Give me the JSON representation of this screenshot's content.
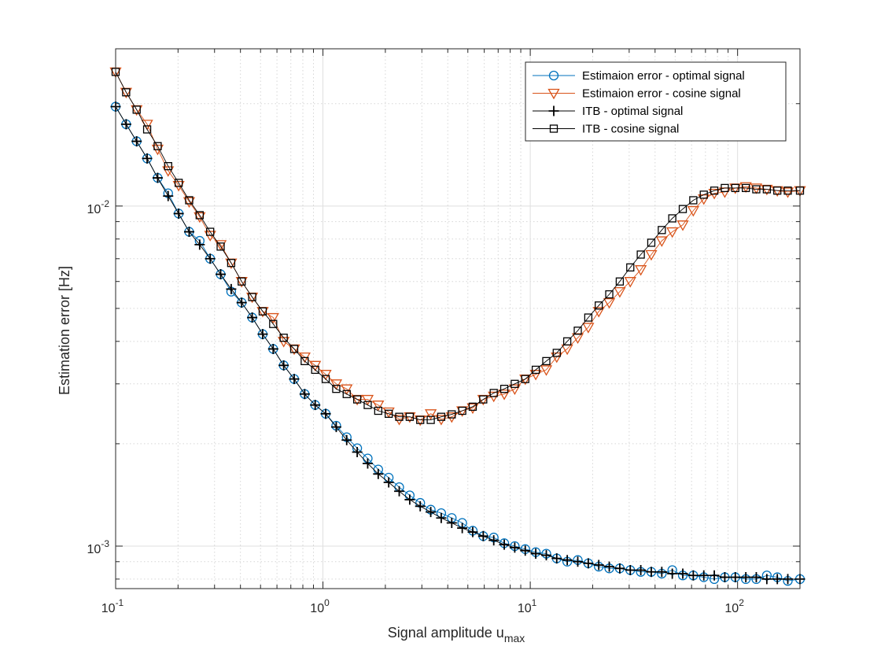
{
  "chart_data": {
    "type": "line",
    "x_scale": "log",
    "y_scale": "log",
    "xlim": [
      0.1,
      200
    ],
    "ylim": [
      0.00075,
      0.029
    ],
    "xlabel": "Signal amplitude u",
    "xlabel_sub": "max",
    "ylabel": "Estimation error [Hz]",
    "grid": true,
    "legend_position": "top-right",
    "x_ticks": [
      {
        "value": 0.1,
        "base": "10",
        "exp": "-1"
      },
      {
        "value": 1,
        "base": "10",
        "exp": "0"
      },
      {
        "value": 10,
        "base": "10",
        "exp": "1"
      },
      {
        "value": 100,
        "base": "10",
        "exp": "2"
      }
    ],
    "y_ticks": [
      {
        "value": 0.001,
        "base": "10",
        "exp": "-3"
      },
      {
        "value": 0.01,
        "base": "10",
        "exp": "-2"
      }
    ],
    "x": [
      0.1,
      0.1124,
      0.1263,
      0.1419,
      0.1595,
      0.1792,
      0.2014,
      0.2263,
      0.2543,
      0.2858,
      0.3211,
      0.3609,
      0.4055,
      0.4557,
      0.5121,
      0.5754,
      0.6466,
      0.7266,
      0.8165,
      0.9175,
      1.031,
      1.159,
      1.302,
      1.463,
      1.644,
      1.848,
      2.076,
      2.333,
      2.622,
      2.946,
      3.311,
      3.72,
      4.181,
      4.698,
      5.279,
      5.932,
      6.666,
      7.491,
      8.418,
      9.459,
      10.63,
      11.95,
      13.42,
      15.08,
      16.95,
      19.05,
      21.4,
      24.05,
      27.03,
      30.37,
      34.13,
      38.35,
      43.1,
      48.43,
      54.42,
      61.15,
      68.72,
      77.22,
      86.78,
      97.51,
      109.6,
      123.1,
      138.4,
      155.5,
      174.7,
      200
    ],
    "series": [
      {
        "name": "Estimaion error - optimal signal",
        "marker": "circle",
        "color": "#0072BD",
        "values": [
          0.0196,
          0.0174,
          0.0155,
          0.0138,
          0.0121,
          0.0109,
          0.0095,
          0.0084,
          0.0079,
          0.007,
          0.0063,
          0.0056,
          0.0052,
          0.0047,
          0.0042,
          0.0038,
          0.0034,
          0.0031,
          0.0028,
          0.0026,
          0.00245,
          0.00226,
          0.00209,
          0.00194,
          0.00181,
          0.00168,
          0.00159,
          0.00149,
          0.00141,
          0.00134,
          0.00128,
          0.00125,
          0.00121,
          0.00117,
          0.00111,
          0.00107,
          0.00106,
          0.00102,
          0.001,
          0.00098,
          0.00096,
          0.00095,
          0.00092,
          0.0009,
          0.00091,
          0.00089,
          0.00087,
          0.00086,
          0.00086,
          0.00085,
          0.00084,
          0.00084,
          0.00083,
          0.00085,
          0.00082,
          0.00082,
          0.00081,
          0.0008,
          0.00081,
          0.00081,
          0.0008,
          0.0008,
          0.00082,
          0.00081,
          0.00079,
          0.0008
        ]
      },
      {
        "name": "Estimaion error - cosine signal",
        "marker": "triangle-down",
        "color": "#D95319",
        "values": [
          0.0248,
          0.0216,
          0.0192,
          0.0174,
          0.0147,
          0.0127,
          0.0115,
          0.0103,
          0.0093,
          0.0082,
          0.0077,
          0.0068,
          0.006,
          0.0054,
          0.0049,
          0.0047,
          0.004,
          0.0038,
          0.0036,
          0.0034,
          0.0032,
          0.003,
          0.0029,
          0.0027,
          0.0027,
          0.0026,
          0.00248,
          0.00236,
          0.0024,
          0.00235,
          0.00245,
          0.00236,
          0.0024,
          0.0025,
          0.00255,
          0.0027,
          0.00276,
          0.0028,
          0.0029,
          0.0031,
          0.0032,
          0.0033,
          0.0036,
          0.0038,
          0.0041,
          0.0044,
          0.0049,
          0.0052,
          0.0056,
          0.006,
          0.0065,
          0.0072,
          0.0079,
          0.0084,
          0.0088,
          0.0097,
          0.0105,
          0.0109,
          0.011,
          0.0113,
          0.0114,
          0.0113,
          0.0112,
          0.0111,
          0.011,
          0.0111
        ]
      },
      {
        "name": "ITB - optimal signal",
        "marker": "plus",
        "color": "#000000",
        "values": [
          0.0196,
          0.0174,
          0.0155,
          0.0138,
          0.0121,
          0.0107,
          0.0095,
          0.0084,
          0.0077,
          0.007,
          0.0063,
          0.0057,
          0.0052,
          0.0047,
          0.0042,
          0.0038,
          0.0034,
          0.0031,
          0.0028,
          0.0026,
          0.00245,
          0.00224,
          0.00205,
          0.00189,
          0.00175,
          0.00163,
          0.00154,
          0.00145,
          0.00137,
          0.00131,
          0.00126,
          0.00121,
          0.00117,
          0.00113,
          0.0011,
          0.00107,
          0.00104,
          0.00101,
          0.00099,
          0.00097,
          0.00095,
          0.00094,
          0.00092,
          0.00091,
          0.0009,
          0.00089,
          0.00088,
          0.00087,
          0.00086,
          0.00085,
          0.00085,
          0.00084,
          0.00084,
          0.00083,
          0.00083,
          0.00082,
          0.00082,
          0.00082,
          0.00081,
          0.00081,
          0.00081,
          0.00081,
          0.0008,
          0.0008,
          0.0008,
          0.0008
        ]
      },
      {
        "name": "ITB - cosine signal",
        "marker": "square",
        "color": "#000000",
        "values": [
          0.0248,
          0.0216,
          0.0192,
          0.0168,
          0.015,
          0.0131,
          0.0117,
          0.0104,
          0.0094,
          0.0084,
          0.0076,
          0.0068,
          0.006,
          0.0054,
          0.0049,
          0.0045,
          0.0041,
          0.0038,
          0.0035,
          0.0033,
          0.0031,
          0.0029,
          0.0028,
          0.0027,
          0.0026,
          0.0025,
          0.00245,
          0.0024,
          0.0024,
          0.00235,
          0.00235,
          0.0024,
          0.00244,
          0.0025,
          0.00257,
          0.0027,
          0.00282,
          0.0029,
          0.003,
          0.0031,
          0.0033,
          0.0035,
          0.0037,
          0.004,
          0.0043,
          0.0047,
          0.0051,
          0.0055,
          0.006,
          0.0066,
          0.0072,
          0.0078,
          0.0085,
          0.0092,
          0.0098,
          0.0104,
          0.0108,
          0.0111,
          0.0113,
          0.0113,
          0.0113,
          0.0112,
          0.0112,
          0.0111,
          0.0111,
          0.0111
        ]
      }
    ]
  }
}
